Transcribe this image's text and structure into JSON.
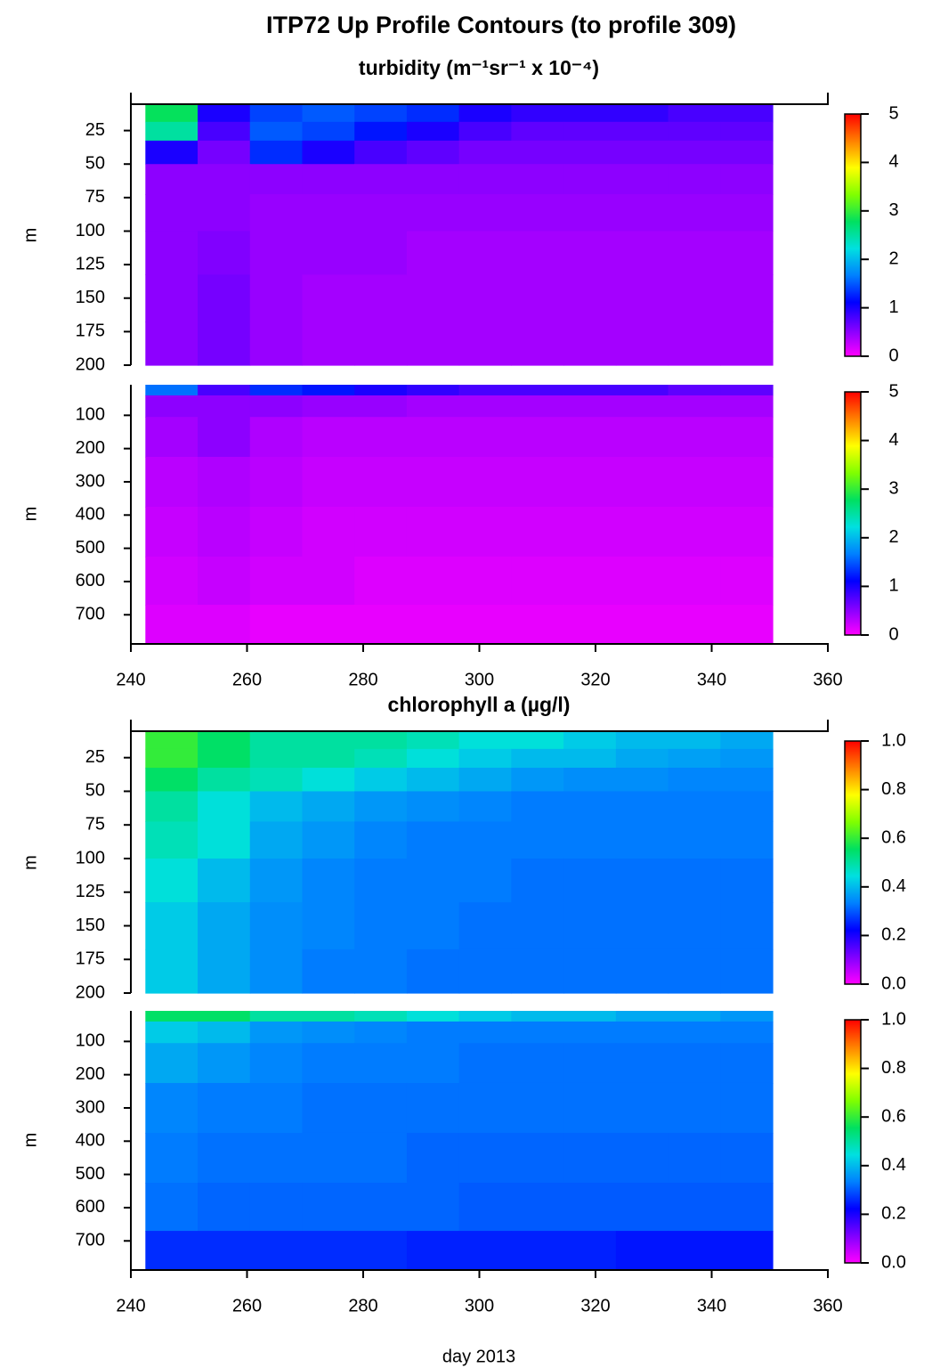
{
  "title": "ITP72 Up Profile Contours (to profile 309)",
  "chart_data": [
    {
      "type": "heatmap",
      "title": "turbidity (m⁻¹sr⁻¹ x 10⁻⁴)",
      "ylabel": "m",
      "xlim": [
        240,
        360
      ],
      "ylim": [
        6,
        200
      ],
      "yticks": [
        25,
        50,
        75,
        100,
        125,
        150,
        175,
        200
      ],
      "x": [
        247,
        256,
        265,
        274,
        283,
        292,
        301,
        310,
        319,
        328,
        337,
        346
      ],
      "y": [
        12,
        25,
        40,
        60,
        85,
        115,
        150,
        185
      ],
      "z": [
        [
          2.8,
          1.0,
          1.4,
          1.5,
          1.4,
          1.3,
          1.0,
          0.9,
          0.9,
          0.9,
          0.8,
          0.8
        ],
        [
          2.5,
          0.8,
          1.5,
          1.4,
          1.2,
          1.0,
          0.8,
          0.7,
          0.7,
          0.7,
          0.7,
          0.7
        ],
        [
          1.0,
          0.6,
          1.3,
          1.0,
          0.8,
          0.7,
          0.6,
          0.6,
          0.6,
          0.6,
          0.6,
          0.6
        ],
        [
          0.5,
          0.5,
          0.5,
          0.5,
          0.5,
          0.5,
          0.5,
          0.5,
          0.5,
          0.5,
          0.5,
          0.5
        ],
        [
          0.5,
          0.5,
          0.45,
          0.45,
          0.45,
          0.45,
          0.45,
          0.45,
          0.45,
          0.45,
          0.45,
          0.45
        ],
        [
          0.5,
          0.55,
          0.45,
          0.45,
          0.45,
          0.4,
          0.4,
          0.4,
          0.4,
          0.4,
          0.4,
          0.4
        ],
        [
          0.5,
          0.6,
          0.45,
          0.4,
          0.4,
          0.4,
          0.4,
          0.4,
          0.4,
          0.4,
          0.4,
          0.4
        ],
        [
          0.5,
          0.6,
          0.45,
          0.4,
          0.4,
          0.4,
          0.4,
          0.4,
          0.4,
          0.4,
          0.4,
          0.4
        ]
      ],
      "clim": [
        0,
        5
      ],
      "cticks": [
        0,
        1,
        2,
        3,
        4,
        5
      ],
      "colors": [
        "#ff00ff",
        "#8000ff",
        "#0000ff",
        "#0080ff",
        "#00e0e0",
        "#00e060",
        "#80ff00",
        "#ffff00",
        "#ff8000",
        "#ff0000"
      ]
    },
    {
      "type": "heatmap",
      "ylabel": "m",
      "xlim": [
        240,
        360
      ],
      "ylim": [
        8,
        785
      ],
      "yticks": [
        100,
        200,
        300,
        400,
        500,
        600,
        700
      ],
      "xticks": [
        240,
        260,
        280,
        300,
        320,
        340,
        360
      ],
      "x": [
        247,
        256,
        265,
        274,
        283,
        292,
        301,
        310,
        319,
        328,
        337,
        346
      ],
      "y": [
        20,
        60,
        150,
        300,
        450,
        600,
        740
      ],
      "z": [
        [
          1.6,
          0.8,
          1.3,
          1.2,
          1.0,
          0.9,
          0.8,
          0.8,
          0.8,
          0.8,
          0.7,
          0.7
        ],
        [
          0.5,
          0.5,
          0.5,
          0.45,
          0.45,
          0.4,
          0.4,
          0.4,
          0.4,
          0.4,
          0.4,
          0.4
        ],
        [
          0.4,
          0.5,
          0.35,
          0.3,
          0.3,
          0.3,
          0.3,
          0.3,
          0.3,
          0.3,
          0.3,
          0.3
        ],
        [
          0.3,
          0.35,
          0.3,
          0.25,
          0.25,
          0.25,
          0.25,
          0.25,
          0.25,
          0.25,
          0.25,
          0.25
        ],
        [
          0.25,
          0.3,
          0.25,
          0.2,
          0.2,
          0.2,
          0.2,
          0.2,
          0.2,
          0.2,
          0.2,
          0.2
        ],
        [
          0.2,
          0.25,
          0.2,
          0.2,
          0.15,
          0.15,
          0.15,
          0.15,
          0.15,
          0.15,
          0.15,
          0.15
        ],
        [
          0.15,
          0.15,
          0.1,
          0.1,
          0.1,
          0.1,
          0.1,
          0.1,
          0.1,
          0.1,
          0.1,
          0.1
        ]
      ],
      "clim": [
        0,
        5
      ],
      "cticks": [
        0,
        1,
        2,
        3,
        4,
        5
      ],
      "colors": [
        "#ff00ff",
        "#8000ff",
        "#0000ff",
        "#0080ff",
        "#00e0e0",
        "#00e060",
        "#80ff00",
        "#ffff00",
        "#ff8000",
        "#ff0000"
      ]
    },
    {
      "type": "heatmap",
      "title": "chlorophyll a (µg/l)",
      "ylabel": "m",
      "xlim": [
        240,
        360
      ],
      "ylim": [
        6,
        200
      ],
      "yticks": [
        25,
        50,
        75,
        100,
        125,
        150,
        175,
        200
      ],
      "x": [
        247,
        256,
        265,
        274,
        283,
        292,
        301,
        310,
        319,
        328,
        337,
        346
      ],
      "y": [
        12,
        25,
        40,
        60,
        85,
        115,
        150,
        185
      ],
      "z": [
        [
          0.6,
          0.55,
          0.5,
          0.5,
          0.5,
          0.48,
          0.45,
          0.45,
          0.42,
          0.4,
          0.4,
          0.38
        ],
        [
          0.6,
          0.55,
          0.5,
          0.5,
          0.48,
          0.45,
          0.42,
          0.4,
          0.4,
          0.38,
          0.37,
          0.36
        ],
        [
          0.55,
          0.5,
          0.48,
          0.45,
          0.42,
          0.4,
          0.38,
          0.36,
          0.35,
          0.35,
          0.34,
          0.34
        ],
        [
          0.5,
          0.45,
          0.4,
          0.38,
          0.36,
          0.35,
          0.34,
          0.33,
          0.33,
          0.33,
          0.33,
          0.33
        ],
        [
          0.48,
          0.45,
          0.38,
          0.36,
          0.34,
          0.33,
          0.33,
          0.33,
          0.33,
          0.33,
          0.33,
          0.33
        ],
        [
          0.45,
          0.4,
          0.36,
          0.34,
          0.33,
          0.33,
          0.33,
          0.32,
          0.32,
          0.32,
          0.32,
          0.32
        ],
        [
          0.42,
          0.38,
          0.35,
          0.34,
          0.33,
          0.33,
          0.32,
          0.32,
          0.32,
          0.32,
          0.32,
          0.32
        ],
        [
          0.42,
          0.38,
          0.35,
          0.33,
          0.33,
          0.32,
          0.32,
          0.32,
          0.32,
          0.32,
          0.32,
          0.32
        ]
      ],
      "clim": [
        0,
        1
      ],
      "cticks": [
        {
          "value": 0,
          "label": "0.0"
        },
        {
          "value": 0.2,
          "label": "0.2"
        },
        {
          "value": 0.4,
          "label": "0.4"
        },
        {
          "value": 0.6,
          "label": "0.6"
        },
        {
          "value": 0.8,
          "label": "0.8"
        },
        {
          "value": 1,
          "label": "1.0"
        }
      ],
      "colors": [
        "#ff00ff",
        "#8000ff",
        "#0000ff",
        "#0080ff",
        "#00e0e0",
        "#00e060",
        "#80ff00",
        "#ffff00",
        "#ff8000",
        "#ff0000"
      ]
    },
    {
      "type": "heatmap",
      "ylabel": "m",
      "xlabel": "day 2013",
      "xlim": [
        240,
        360
      ],
      "ylim": [
        8,
        785
      ],
      "yticks": [
        100,
        200,
        300,
        400,
        500,
        600,
        700
      ],
      "xticks": [
        240,
        260,
        280,
        300,
        320,
        340,
        360
      ],
      "x": [
        247,
        256,
        265,
        274,
        283,
        292,
        301,
        310,
        319,
        328,
        337,
        346
      ],
      "y": [
        20,
        60,
        150,
        300,
        450,
        600,
        740
      ],
      "z": [
        [
          0.55,
          0.55,
          0.5,
          0.5,
          0.48,
          0.45,
          0.42,
          0.4,
          0.4,
          0.38,
          0.38,
          0.36
        ],
        [
          0.42,
          0.4,
          0.36,
          0.35,
          0.34,
          0.33,
          0.33,
          0.33,
          0.33,
          0.33,
          0.33,
          0.33
        ],
        [
          0.38,
          0.36,
          0.34,
          0.33,
          0.33,
          0.33,
          0.32,
          0.32,
          0.32,
          0.32,
          0.32,
          0.32
        ],
        [
          0.34,
          0.33,
          0.33,
          0.32,
          0.32,
          0.32,
          0.32,
          0.32,
          0.32,
          0.32,
          0.32,
          0.32
        ],
        [
          0.33,
          0.32,
          0.32,
          0.32,
          0.32,
          0.31,
          0.31,
          0.31,
          0.31,
          0.31,
          0.31,
          0.31
        ],
        [
          0.32,
          0.31,
          0.31,
          0.31,
          0.31,
          0.31,
          0.3,
          0.3,
          0.3,
          0.3,
          0.3,
          0.3
        ],
        [
          0.26,
          0.26,
          0.26,
          0.26,
          0.26,
          0.25,
          0.25,
          0.25,
          0.25,
          0.24,
          0.24,
          0.24
        ]
      ],
      "clim": [
        0,
        1
      ],
      "cticks": [
        {
          "value": 0,
          "label": "0.0"
        },
        {
          "value": 0.2,
          "label": "0.2"
        },
        {
          "value": 0.4,
          "label": "0.4"
        },
        {
          "value": 0.6,
          "label": "0.6"
        },
        {
          "value": 0.8,
          "label": "0.8"
        },
        {
          "value": 1,
          "label": "1.0"
        }
      ],
      "colors": [
        "#ff00ff",
        "#8000ff",
        "#0000ff",
        "#0080ff",
        "#00e0e0",
        "#00e060",
        "#80ff00",
        "#ffff00",
        "#ff8000",
        "#ff0000"
      ]
    }
  ]
}
